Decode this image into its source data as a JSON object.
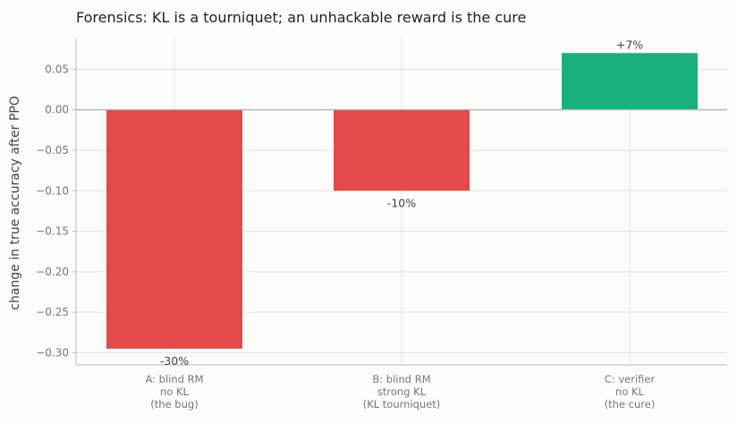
{
  "chart_data": {
    "type": "bar",
    "title": "Forensics: KL is a tourniquet; an unhackable reward is the cure",
    "xlabel": "",
    "ylabel": "change in true accuracy after PPO",
    "categories": [
      [
        "A: blind RM",
        "no KL",
        "(the bug)"
      ],
      [
        "B: blind RM",
        "strong KL",
        "(KL tourniquet)"
      ],
      [
        "C: verifier",
        "no KL",
        "(the cure)"
      ]
    ],
    "values": [
      -0.295,
      -0.1,
      0.07
    ],
    "data_labels": [
      "-30%",
      "-10%",
      "+7%"
    ],
    "bar_colors": [
      "#e34a4a",
      "#e34a4a",
      "#1ab07a"
    ],
    "ylim": [
      -0.315,
      0.088
    ],
    "yticks": [
      0.05,
      0.0,
      -0.05,
      -0.1,
      -0.15,
      -0.2,
      -0.25,
      -0.3
    ],
    "ytick_labels": [
      "0.05",
      "0.00",
      "−0.05",
      "−0.10",
      "−0.15",
      "−0.20",
      "−0.25",
      "−0.30"
    ],
    "grid": true,
    "zero_line": true
  }
}
